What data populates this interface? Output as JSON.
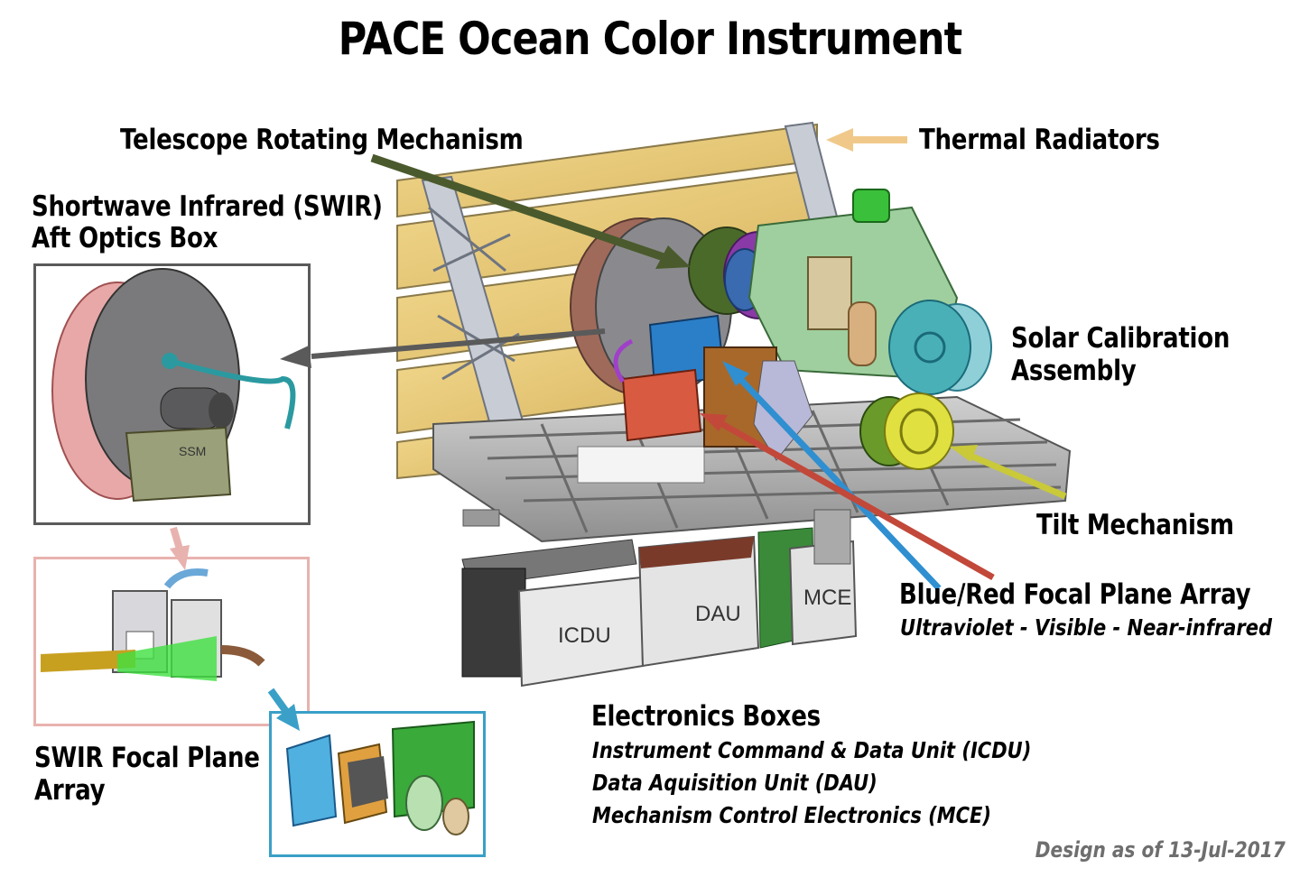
{
  "title": "PACE Ocean Color Instrument",
  "labels": {
    "telescope": "Telescope Rotating Mechanism",
    "thermal": "Thermal Radiators",
    "swir_box_line1": "Shortwave Infrared (SWIR)",
    "swir_box_line2": "Aft Optics Box",
    "solar_line1": "Solar Calibration",
    "solar_line2": "Assembly",
    "tilt": "Tilt Mechanism",
    "fpa": "Blue/Red Focal Plane Array",
    "fpa_sub": "Ultraviolet - Visible - Near-infrared",
    "electronics": "Electronics Boxes",
    "elec_icdu": "Instrument Command & Data Unit (ICDU)",
    "elec_dau": "Data Aquisition Unit (DAU)",
    "elec_mce": "Mechanism Control Electronics (MCE)",
    "swir_fpa_line1": "SWIR Focal Plane",
    "swir_fpa_line2": "Array",
    "credit": "Design as of 13-Jul-2017"
  },
  "box_labels": {
    "icdu": "ICDU",
    "dau": "DAU",
    "mce": "MCE",
    "ssm": "SSM"
  },
  "colors": {
    "telescope_arrow": "#4a5a2c",
    "thermal_arrow": "#f0c98a",
    "swir_arrow": "#5a5a5a",
    "blue_fpa_arrow": "#2f8fd0",
    "red_fpa_arrow": "#c2483a",
    "tilt_arrow": "#c9c93a",
    "pink_arrow": "#e8b2ae",
    "cyan_arrow": "#3aa0c8",
    "frame_gray": "#5a5a5a",
    "frame_pink": "#e8b2ae",
    "frame_cyan": "#3aa0c8"
  }
}
